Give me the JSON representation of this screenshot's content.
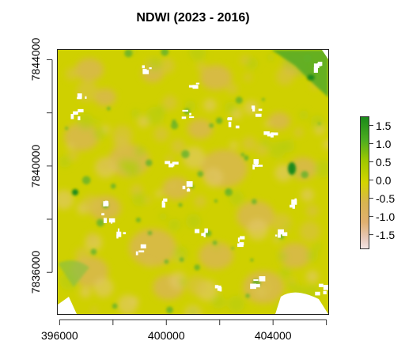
{
  "title": "NDWI (2023 - 2016)",
  "colors": {
    "high_green": "#1a8a1a",
    "mid_yellow": "#d4d400",
    "low_tan": "#e0b070",
    "lowest_pink": "#f2e4e4",
    "background": "#ffffff"
  },
  "map": {
    "x_ticks": [
      {
        "value": 396000,
        "label": "396000"
      },
      {
        "value": 398000,
        "label": ""
      },
      {
        "value": 400000,
        "label": "400000"
      },
      {
        "value": 402000,
        "label": ""
      },
      {
        "value": 404000,
        "label": "404000"
      },
      {
        "value": 406000,
        "label": ""
      }
    ],
    "y_ticks": [
      {
        "value": 7836000,
        "label": "7836000"
      },
      {
        "value": 7838000,
        "label": ""
      },
      {
        "value": 7840000,
        "label": "7840000"
      },
      {
        "value": 7842000,
        "label": ""
      },
      {
        "value": 7844000,
        "label": "7844000"
      }
    ],
    "x_range": [
      395900,
      406100
    ],
    "y_range": [
      7834400,
      7844400
    ]
  },
  "legend": {
    "min": -1.9,
    "max": 1.75,
    "ticks": [
      {
        "value": 1.5,
        "label": "1.5"
      },
      {
        "value": 1.0,
        "label": "1.0"
      },
      {
        "value": 0.5,
        "label": "0.5"
      },
      {
        "value": 0.0,
        "label": "0.0"
      },
      {
        "value": -0.5,
        "label": "-0.5"
      },
      {
        "value": -1.0,
        "label": "-1.0"
      },
      {
        "value": -1.5,
        "label": "-1.5"
      }
    ]
  }
}
